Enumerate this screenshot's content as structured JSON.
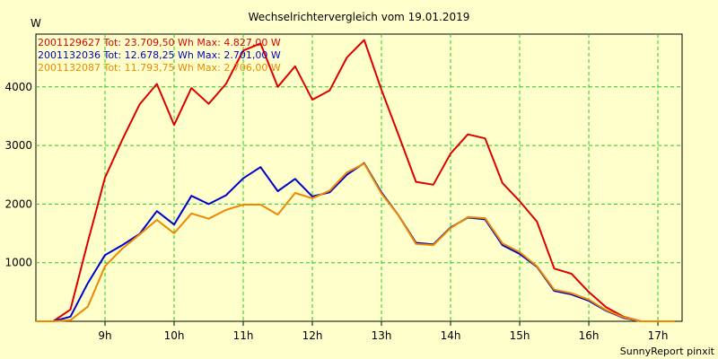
{
  "chart_data": {
    "type": "line",
    "title": "Wechselrichtervergleich vom 19.01.2019",
    "ylabel": "W",
    "xlabel": "",
    "footer": "SunnyReport pinxit",
    "xlim": [
      8.0,
      17.35
    ],
    "ylim": [
      0,
      4900
    ],
    "grid": true,
    "legend_position": "top-left",
    "y_ticks": [
      1000,
      2000,
      3000,
      4000
    ],
    "x_ticks": [
      {
        "x": 9,
        "label": "9h"
      },
      {
        "x": 10,
        "label": "10h"
      },
      {
        "x": 11,
        "label": "11h"
      },
      {
        "x": 12,
        "label": "12h"
      },
      {
        "x": 13,
        "label": "13h"
      },
      {
        "x": 14,
        "label": "14h"
      },
      {
        "x": 15,
        "label": "15h"
      },
      {
        "x": 16,
        "label": "16h"
      },
      {
        "x": 17,
        "label": "17h"
      }
    ],
    "x": [
      8.0,
      8.25,
      8.5,
      8.75,
      9.0,
      9.25,
      9.5,
      9.75,
      10.0,
      10.25,
      10.5,
      10.75,
      11.0,
      11.25,
      11.5,
      11.75,
      12.0,
      12.25,
      12.5,
      12.75,
      13.0,
      13.25,
      13.5,
      13.75,
      14.0,
      14.25,
      14.5,
      14.75,
      15.0,
      15.25,
      15.5,
      15.75,
      16.0,
      16.25,
      16.5,
      16.75,
      17.0,
      17.25
    ],
    "series": [
      {
        "name": "2001129627",
        "legend": "2001129627 Tot: 23.709,50 Wh Max: 4.827,00 W",
        "color": "#DD0000",
        "values": [
          0,
          0,
          200,
          1350,
          2450,
          3100,
          3700,
          4050,
          3350,
          3980,
          3710,
          4050,
          4620,
          4740,
          4000,
          4350,
          3780,
          3940,
          4500,
          4800,
          3950,
          3170,
          2380,
          2330,
          2860,
          3190,
          3120,
          2360,
          2050,
          1700,
          900,
          810,
          500,
          240,
          80,
          0,
          0,
          0
        ]
      },
      {
        "name": "2001132036",
        "legend": "2001132036 Tot: 12.678,25 Wh Max: 2.701,00 W",
        "color": "#0000CC",
        "values": [
          0,
          0,
          80,
          650,
          1130,
          1300,
          1490,
          1880,
          1650,
          2140,
          2000,
          2150,
          2440,
          2630,
          2220,
          2430,
          2130,
          2200,
          2500,
          2700,
          2200,
          1800,
          1340,
          1310,
          1600,
          1770,
          1740,
          1300,
          1150,
          930,
          520,
          460,
          350,
          180,
          60,
          0,
          0,
          0
        ]
      },
      {
        "name": "2001132087",
        "legend": "2001132087 Tot: 11.793,75 Wh Max: 2.706,00 W",
        "color": "#EE8800",
        "values": [
          0,
          0,
          20,
          250,
          940,
          1240,
          1480,
          1730,
          1500,
          1840,
          1750,
          1900,
          1990,
          1990,
          1820,
          2190,
          2100,
          2230,
          2540,
          2690,
          2180,
          1800,
          1320,
          1300,
          1590,
          1780,
          1760,
          1330,
          1180,
          940,
          540,
          480,
          370,
          190,
          70,
          0,
          0,
          0
        ]
      }
    ]
  }
}
